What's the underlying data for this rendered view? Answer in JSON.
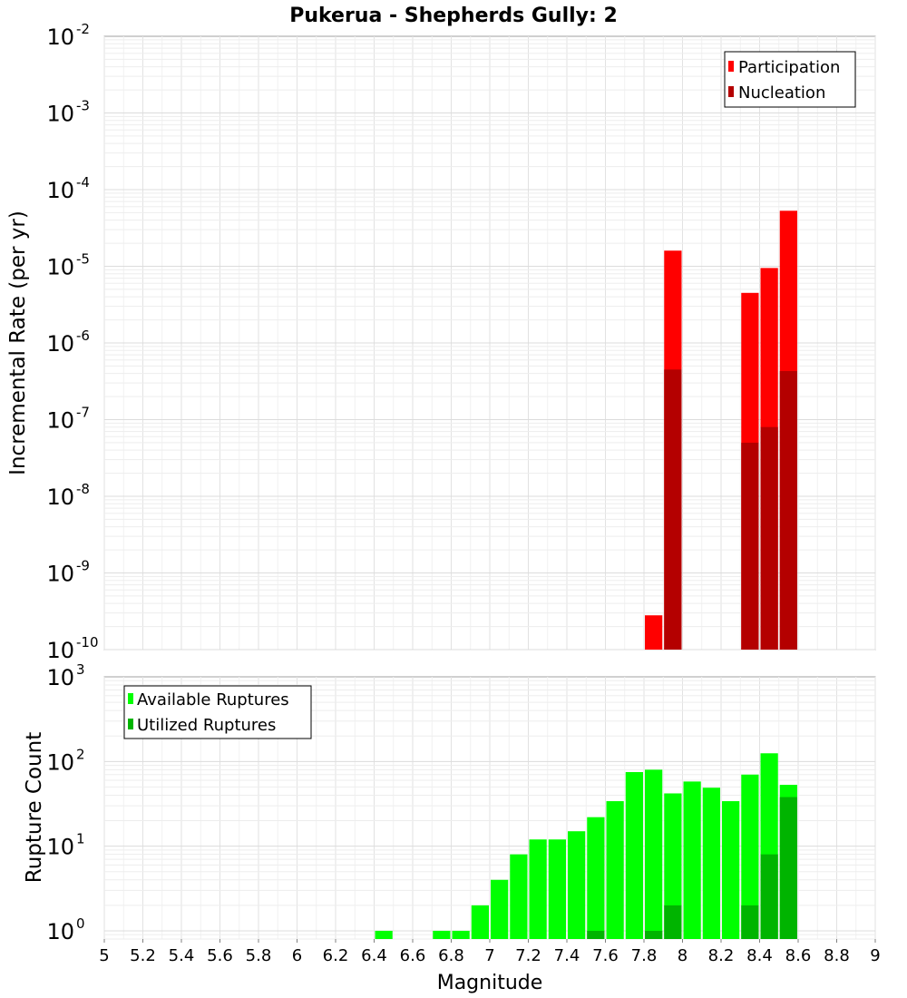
{
  "chart_data": [
    {
      "type": "bar",
      "title": "Pukerua - Shepherds Gully: 2",
      "xlabel": "Magnitude",
      "ylabel": "Incremental Rate (per yr)",
      "yscale": "log",
      "xlim": [
        5,
        9
      ],
      "ylim": [
        1e-10,
        0.01
      ],
      "ytick_labels": [
        {
          "base": "10",
          "exp": "-10"
        },
        {
          "base": "10",
          "exp": "-9"
        },
        {
          "base": "10",
          "exp": "-8"
        },
        {
          "base": "10",
          "exp": "-7"
        },
        {
          "base": "10",
          "exp": "-6"
        },
        {
          "base": "10",
          "exp": "-5"
        },
        {
          "base": "10",
          "exp": "-4"
        },
        {
          "base": "10",
          "exp": "-3"
        },
        {
          "base": "10",
          "exp": "-2"
        }
      ],
      "legend_position": "top-right",
      "series": [
        {
          "name": "Participation",
          "color": "#ff0000",
          "x": [
            7.85,
            7.95,
            8.35,
            8.45,
            8.55
          ],
          "values": [
            2.8e-10,
            1.6e-05,
            4.5e-06,
            9.5e-06,
            5.3e-05
          ]
        },
        {
          "name": "Nucleation",
          "color": "#b40000",
          "x": [
            7.95,
            8.35,
            8.45,
            8.55
          ],
          "values": [
            4.5e-07,
            5e-08,
            8e-08,
            4.3e-07
          ]
        }
      ]
    },
    {
      "type": "bar",
      "xlabel": "Magnitude",
      "ylabel": "Rupture Count",
      "yscale": "log",
      "xlim": [
        5,
        9
      ],
      "ylim": [
        0.8,
        1000
      ],
      "xtick_labels": [
        "5",
        "5.2",
        "5.4",
        "5.6",
        "5.8",
        "6",
        "6.2",
        "6.4",
        "6.6",
        "6.8",
        "7",
        "7.2",
        "7.4",
        "7.6",
        "7.8",
        "8",
        "8.2",
        "8.4",
        "8.6",
        "8.8",
        "9"
      ],
      "ytick_labels": [
        {
          "base": "10",
          "exp": "0"
        },
        {
          "base": "10",
          "exp": "1"
        },
        {
          "base": "10",
          "exp": "2"
        },
        {
          "base": "10",
          "exp": "3"
        }
      ],
      "legend_position": "top-left",
      "series": [
        {
          "name": "Available Ruptures",
          "color": "#00ff00",
          "x": [
            6.45,
            6.75,
            6.85,
            6.95,
            7.05,
            7.15,
            7.25,
            7.35,
            7.45,
            7.55,
            7.65,
            7.75,
            7.85,
            7.95,
            8.05,
            8.15,
            8.25,
            8.35,
            8.45,
            8.55
          ],
          "values": [
            1,
            1,
            1,
            2,
            4,
            8,
            12,
            12,
            15,
            22,
            34,
            75,
            80,
            42,
            58,
            49,
            34,
            70,
            125,
            53
          ]
        },
        {
          "name": "Utilized Ruptures",
          "color": "#00b400",
          "x": [
            7.55,
            7.85,
            7.95,
            8.35,
            8.45,
            8.55
          ],
          "values": [
            1,
            1,
            2,
            2,
            8,
            38
          ]
        }
      ]
    }
  ]
}
